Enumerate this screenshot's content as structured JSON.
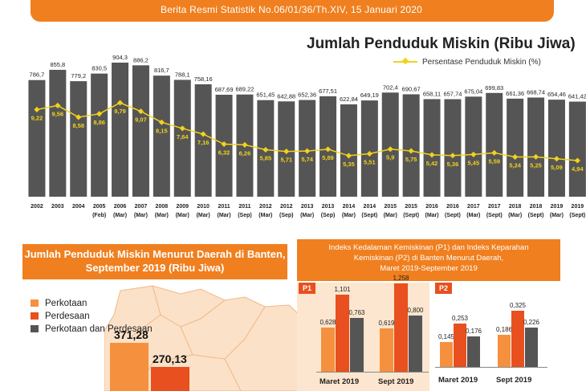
{
  "header": {
    "text": "Berita Resmi Statistik    No.06/01/36/Th.XIV, 15 Januari 2020"
  },
  "chart_data": [
    {
      "type": "bar",
      "title": "Jumlah Penduduk Miskin (Ribu Jiwa)",
      "line_series_name": "Persentase Penduduk Miskin (%)",
      "categories": [
        [
          "2002",
          ""
        ],
        [
          "2003",
          ""
        ],
        [
          "2004",
          ""
        ],
        [
          "2005",
          "(Feb)"
        ],
        [
          "2006",
          "(Mar)"
        ],
        [
          "2007",
          "(Mar)"
        ],
        [
          "2008",
          "(Mar)"
        ],
        [
          "2009",
          "(Mar)"
        ],
        [
          "2010",
          "(Mar)"
        ],
        [
          "2011",
          "(Mar)"
        ],
        [
          "2011",
          "(Sep)"
        ],
        [
          "2012",
          "(Mar)"
        ],
        [
          "2012",
          "(Sep)"
        ],
        [
          "2013",
          "(Mar)"
        ],
        [
          "2013",
          "(Sep)"
        ],
        [
          "2014",
          "(Mar)"
        ],
        [
          "2014",
          "(Sept)"
        ],
        [
          "2015",
          "(Mar)"
        ],
        [
          "2015",
          "(Sept)"
        ],
        [
          "2016",
          "(Mar)"
        ],
        [
          "2016",
          "(Sept)"
        ],
        [
          "2017",
          "(Mar)"
        ],
        [
          "2017",
          "(Sept)"
        ],
        [
          "2018",
          "(Mar)"
        ],
        [
          "2018",
          "(Sept)"
        ],
        [
          "2019",
          "(Mar)"
        ],
        [
          "2019",
          "(Sept)"
        ]
      ],
      "bar_labels": [
        "786,7",
        "855,8",
        "779,2",
        "830,5",
        "904,3",
        "886,2",
        "816,7",
        "788,1",
        "758,16",
        "687,69",
        "689,22",
        "651,45",
        "642,88",
        "652,36",
        "677,51",
        "622,84",
        "649,19",
        "702,4",
        "690,67",
        "658,11",
        "657,74",
        "675,04",
        "699,83",
        "661,36",
        "668,74",
        "654,46",
        "641,42"
      ],
      "bar_values": [
        786.7,
        855.8,
        779.2,
        830.5,
        904.3,
        886.2,
        816.7,
        788.1,
        758.16,
        687.69,
        689.22,
        651.45,
        642.88,
        652.36,
        677.51,
        622.84,
        649.19,
        702.4,
        690.67,
        658.11,
        657.74,
        675.04,
        699.83,
        661.36,
        668.74,
        654.46,
        641.42
      ],
      "line_labels": [
        "9,22",
        "9,56",
        "8,58",
        "8,86",
        "9,79",
        "9,07",
        "8,15",
        "7,64",
        "7,16",
        "6,32",
        "6,26",
        "5,85",
        "5,71",
        "5,74",
        "5,89",
        "5,35",
        "5,51",
        "5,9",
        "5,75",
        "5,42",
        "5,36",
        "5,45",
        "5,59",
        "5,24",
        "5,25",
        "5,09",
        "4,94"
      ],
      "line_values": [
        9.22,
        9.56,
        8.58,
        8.86,
        9.79,
        9.07,
        8.15,
        7.64,
        7.16,
        6.32,
        6.26,
        5.85,
        5.71,
        5.74,
        5.89,
        5.35,
        5.51,
        5.9,
        5.75,
        5.42,
        5.36,
        5.45,
        5.59,
        5.24,
        5.25,
        5.09,
        4.94
      ],
      "bar_color": "#555555",
      "line_color": "#f2d21c"
    },
    {
      "type": "bar",
      "title": "Jumlah Penduduk Miskin Menurut Daerah di Banten, September 2019 (Ribu Jiwa)",
      "title_lines": [
        "Jumlah Penduduk Miskin Menurut Daerah di Banten,",
        "September 2019 (Ribu Jiwa)"
      ],
      "legend": [
        "Perkotaan",
        "Perdesaan",
        "Perkotaan dan Perdesaan"
      ],
      "colors": [
        "#f5913e",
        "#e8501f",
        "#555555"
      ],
      "values": [
        371.28,
        270.13
      ],
      "labels": [
        "371,28",
        "270,13"
      ]
    },
    {
      "type": "bar",
      "title_lines": [
        "Indeks Kedalaman Kemiskinan (P1) dan Indeks Keparahan",
        "Kemiskinan (P2) di Banten Menurut Daerah,",
        "Maret 2019-September 2019"
      ],
      "panels": [
        {
          "tag": "P1",
          "categories": [
            "Maret 2019",
            "Sept 2019"
          ],
          "series": [
            {
              "values": [
                0.628,
                0.619
              ],
              "labels": [
                "0,628",
                "0,619"
              ]
            },
            {
              "values": [
                1.101,
                1.258
              ],
              "labels": [
                "1,101",
                "1,258"
              ]
            },
            {
              "values": [
                0.763,
                0.8
              ],
              "labels": [
                "0,763",
                "0,800"
              ]
            }
          ]
        },
        {
          "tag": "P2",
          "categories": [
            "Maret 2019",
            "Sept 2019"
          ],
          "series": [
            {
              "values": [
                0.145,
                0.186
              ],
              "labels": [
                "0,145",
                "0,186"
              ]
            },
            {
              "values": [
                0.253,
                0.325
              ],
              "labels": [
                "0,253",
                "0,325"
              ]
            },
            {
              "values": [
                0.176,
                0.226
              ],
              "labels": [
                "0,176",
                "0,226"
              ]
            }
          ]
        }
      ]
    }
  ]
}
